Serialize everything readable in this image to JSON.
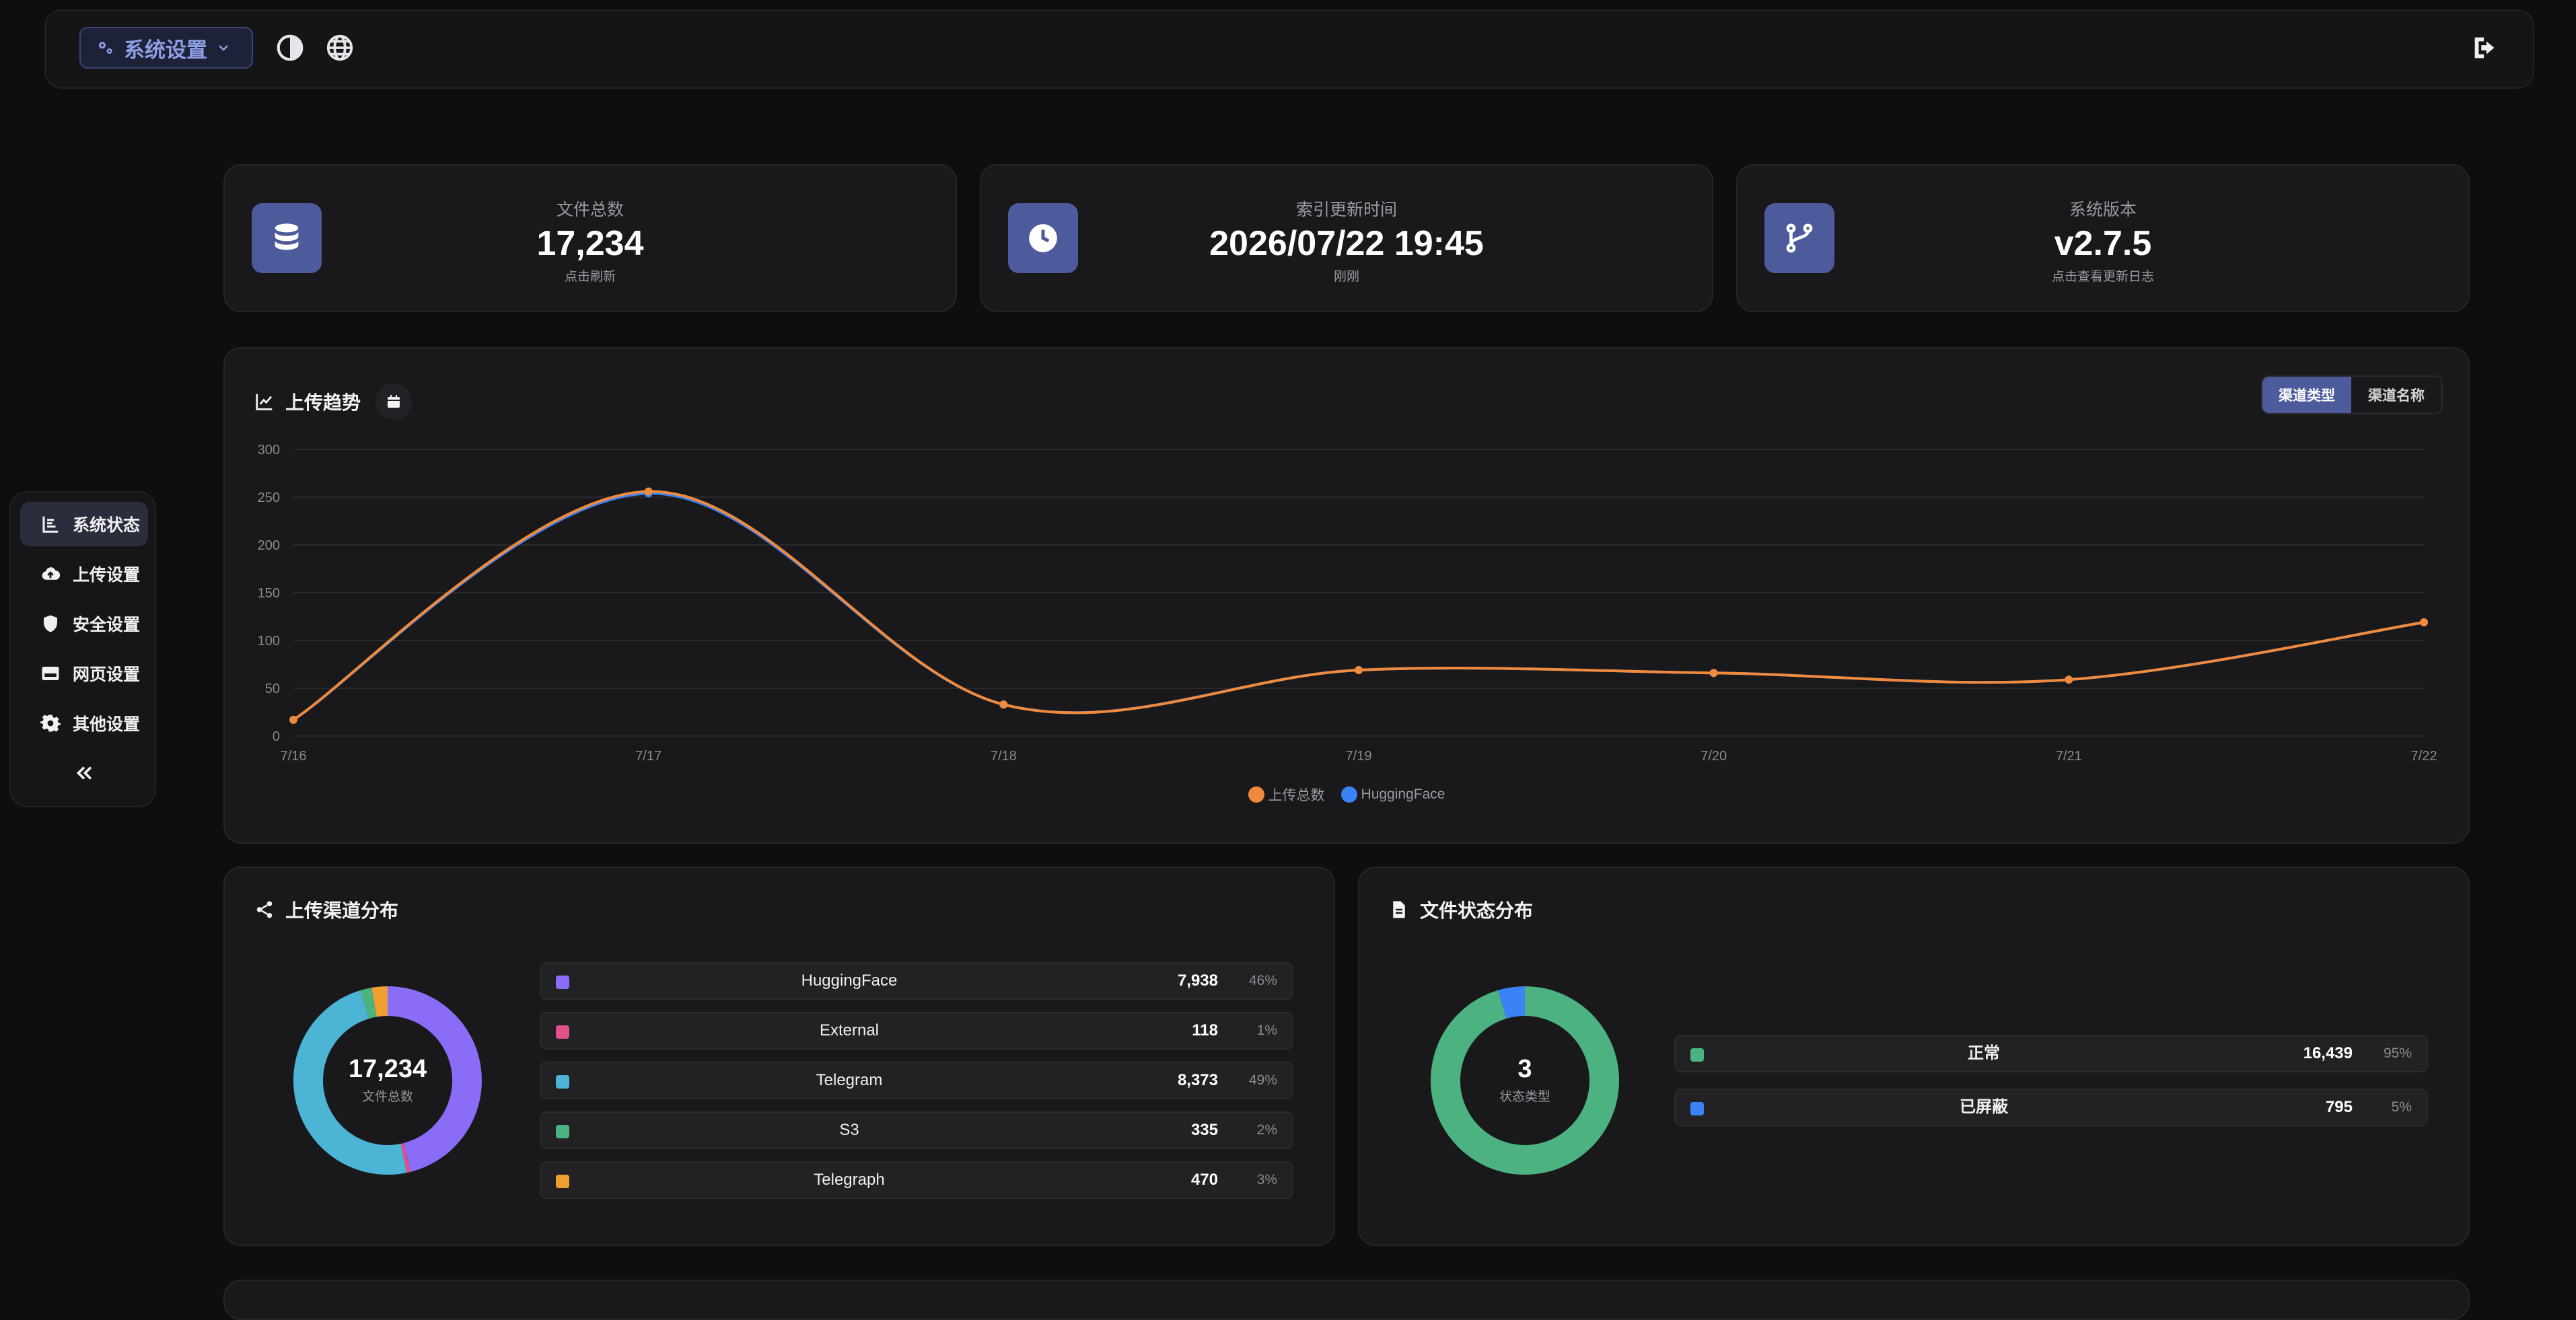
{
  "header": {
    "settings_label": "系统设置",
    "icons": [
      "gears-icon",
      "chevron-down-icon",
      "contrast-icon",
      "globe-icon",
      "logout-icon"
    ]
  },
  "sidebar": {
    "items": [
      {
        "label": "系统状态",
        "icon": "chart-bars-icon",
        "active": true
      },
      {
        "label": "上传设置",
        "icon": "cloud-upload-icon"
      },
      {
        "label": "安全设置",
        "icon": "shield-icon"
      },
      {
        "label": "网页设置",
        "icon": "window-icon"
      },
      {
        "label": "其他设置",
        "icon": "gear-icon"
      }
    ],
    "collapse_icon": "double-chevron-left-icon"
  },
  "stats": [
    {
      "label": "文件总数",
      "value": "17,234",
      "sub": "点击刷新",
      "icon": "database-icon"
    },
    {
      "label": "索引更新时间",
      "value": "2026/07/22 19:45",
      "sub": "刚刚",
      "icon": "clock-icon"
    },
    {
      "label": "系统版本",
      "value": "v2.7.5",
      "sub": "点击查看更新日志",
      "icon": "branch-icon"
    }
  ],
  "trend": {
    "title": "上传趋势",
    "seg_options": [
      "渠道类型",
      "渠道名称"
    ],
    "seg_selected": "渠道类型",
    "colors": {
      "total": "#f08a3c",
      "huggingface": "#3b82f6"
    }
  },
  "chart_data": {
    "type": "line",
    "x": [
      "7/16",
      "7/17",
      "7/18",
      "7/19",
      "7/20",
      "7/21",
      "7/22"
    ],
    "ylim": [
      0,
      300
    ],
    "yticks": [
      0,
      50,
      100,
      150,
      200,
      250,
      300
    ],
    "grid": true,
    "legend_position": "bottom",
    "series": [
      {
        "name": "上传总数",
        "values": [
          17,
          256,
          33,
          69,
          66,
          59,
          119
        ],
        "color": "#f08a3c"
      },
      {
        "name": "HuggingFace",
        "values": [
          17,
          254,
          33,
          69,
          66,
          59,
          119
        ],
        "color": "#3b82f6"
      }
    ]
  },
  "channels": {
    "title": "上传渠道分布",
    "center_value": "17,234",
    "center_label": "文件总数",
    "items": [
      {
        "name": "HuggingFace",
        "count": "7,938",
        "pct": "46%",
        "value": 7938,
        "color": "#8b6cf6"
      },
      {
        "name": "External",
        "count": "118",
        "pct": "1%",
        "value": 118,
        "color": "#e0508a"
      },
      {
        "name": "Telegram",
        "count": "8,373",
        "pct": "49%",
        "value": 8373,
        "color": "#4cb5d6"
      },
      {
        "name": "S3",
        "count": "335",
        "pct": "2%",
        "value": 335,
        "color": "#4cb380"
      },
      {
        "name": "Telegraph",
        "count": "470",
        "pct": "3%",
        "value": 470,
        "color": "#f0a030"
      }
    ]
  },
  "status": {
    "title": "文件状态分布",
    "center_value": "3",
    "center_label": "状态类型",
    "items": [
      {
        "name": "正常",
        "count": "16,439",
        "pct": "95%",
        "value": 16439,
        "color": "#4cb380"
      },
      {
        "name": "已屏蔽",
        "count": "795",
        "pct": "5%",
        "value": 795,
        "color": "#3b82f6"
      }
    ]
  }
}
